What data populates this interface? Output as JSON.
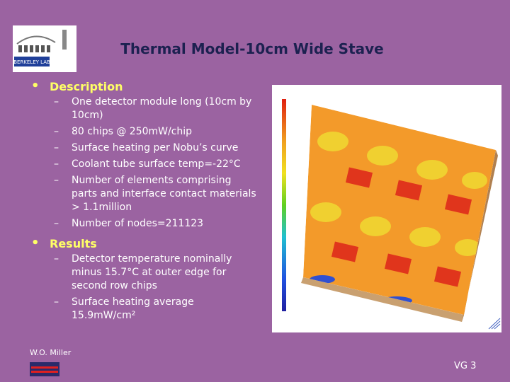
{
  "header": {
    "title": "Thermal Model-10cm Wide Stave"
  },
  "logo": {
    "text": "BERKELEY LAB"
  },
  "sections": [
    {
      "heading": "Description",
      "items": [
        "One detector module long (10cm by 10cm)",
        "80 chips @ 250mW/chip",
        "Surface heating per Nobu’s curve",
        "Coolant tube surface temp=-22°C",
        "Number of elements comprising parts and interface contact materials > 1.1million",
        "Number of nodes=211123"
      ]
    },
    {
      "heading": "Results",
      "items": [
        "Detector temperature nominally minus 15.7°C at outer edge for second row chips",
        "Surface heating average 15.9mW/cm²"
      ]
    }
  ],
  "footer": {
    "author": "W.O. Miller",
    "page": "VG 3"
  }
}
